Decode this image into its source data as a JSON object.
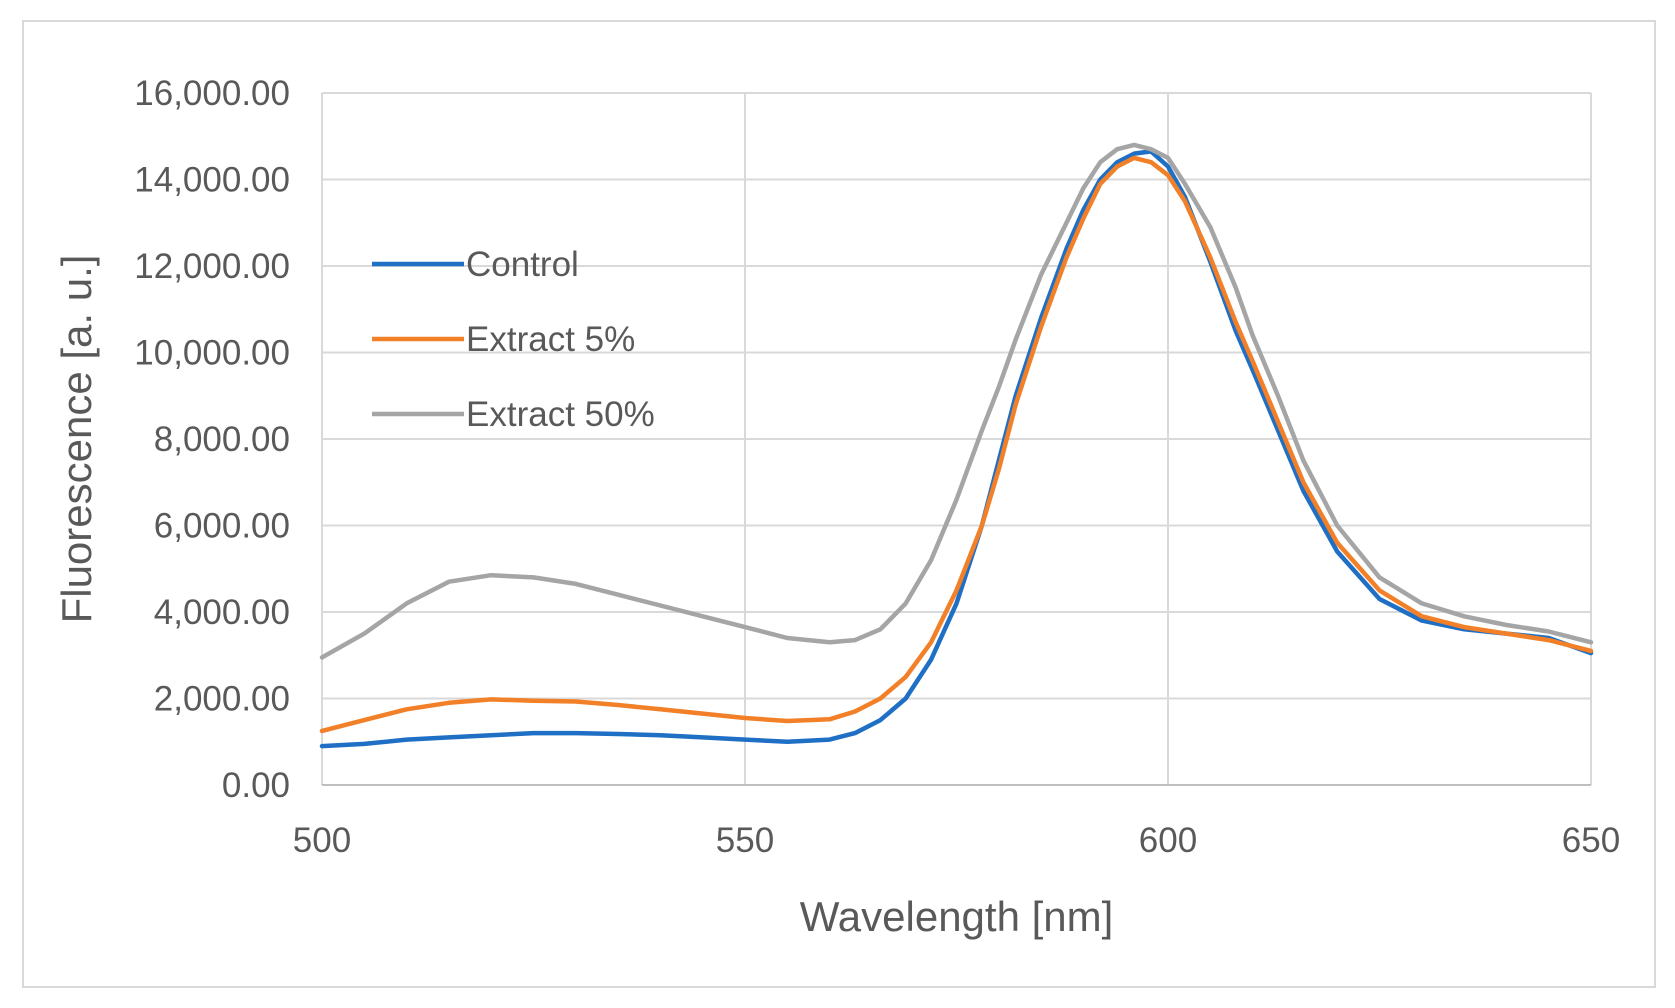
{
  "chart_data": {
    "type": "line",
    "title": "",
    "xlabel": "Wavelength [nm]",
    "ylabel": "Fluorescence [a. u.]",
    "xlim": [
      500,
      650
    ],
    "ylim": [
      0,
      16000
    ],
    "x_ticks": [
      500,
      550,
      600,
      650
    ],
    "x_tick_labels": [
      "500",
      "550",
      "600",
      "650"
    ],
    "y_ticks": [
      0,
      2000,
      4000,
      6000,
      8000,
      10000,
      12000,
      14000,
      16000
    ],
    "y_tick_labels": [
      "0.00",
      "2,000.00",
      "4,000.00",
      "6,000.00",
      "8,000.00",
      "10,000.00",
      "12,000.00",
      "14,000.00",
      "16,000.00"
    ],
    "grid": true,
    "legend_position": "upper-left inside plot",
    "series": [
      {
        "name": "Control",
        "color": "#1f6fc5",
        "x": [
          500,
          505,
          510,
          515,
          520,
          525,
          530,
          535,
          540,
          545,
          550,
          555,
          560,
          563,
          566,
          569,
          572,
          575,
          578,
          580,
          582,
          585,
          588,
          590,
          592,
          594,
          596,
          598,
          600,
          602,
          605,
          608,
          610,
          613,
          616,
          620,
          625,
          630,
          635,
          640,
          645,
          650
        ],
        "values": [
          900,
          950,
          1050,
          1100,
          1150,
          1200,
          1200,
          1180,
          1150,
          1100,
          1050,
          1000,
          1050,
          1200,
          1500,
          2000,
          2900,
          4200,
          6000,
          7500,
          9000,
          10800,
          12400,
          13300,
          14000,
          14400,
          14600,
          14650,
          14300,
          13600,
          12100,
          10500,
          9600,
          8200,
          6800,
          5400,
          4300,
          3800,
          3600,
          3500,
          3400,
          3050
        ]
      },
      {
        "name": "Extract 5%",
        "color": "#f28028",
        "x": [
          500,
          505,
          510,
          515,
          520,
          525,
          530,
          535,
          540,
          545,
          550,
          555,
          560,
          563,
          566,
          569,
          572,
          575,
          578,
          580,
          582,
          585,
          588,
          590,
          592,
          594,
          596,
          598,
          600,
          602,
          605,
          608,
          610,
          613,
          616,
          620,
          625,
          630,
          635,
          640,
          645,
          650
        ],
        "values": [
          1250,
          1500,
          1750,
          1900,
          1980,
          1950,
          1930,
          1850,
          1750,
          1650,
          1550,
          1480,
          1520,
          1700,
          2000,
          2500,
          3300,
          4500,
          6000,
          7300,
          8800,
          10600,
          12200,
          13100,
          13900,
          14300,
          14500,
          14400,
          14100,
          13500,
          12200,
          10700,
          9800,
          8400,
          7000,
          5600,
          4500,
          3900,
          3650,
          3500,
          3350,
          3100
        ]
      },
      {
        "name": "Extract 50%",
        "color": "#a5a5a5",
        "x": [
          500,
          505,
          510,
          515,
          520,
          525,
          530,
          535,
          540,
          545,
          550,
          555,
          560,
          563,
          566,
          569,
          572,
          575,
          578,
          580,
          582,
          585,
          588,
          590,
          592,
          594,
          596,
          598,
          600,
          602,
          605,
          608,
          610,
          613,
          616,
          620,
          625,
          630,
          635,
          640,
          645,
          650
        ],
        "values": [
          2950,
          3500,
          4200,
          4700,
          4850,
          4800,
          4650,
          4400,
          4150,
          3900,
          3650,
          3400,
          3300,
          3350,
          3600,
          4200,
          5200,
          6600,
          8200,
          9200,
          10300,
          11800,
          13000,
          13800,
          14400,
          14700,
          14800,
          14700,
          14500,
          13900,
          12900,
          11500,
          10400,
          9000,
          7500,
          6000,
          4800,
          4200,
          3900,
          3700,
          3550,
          3300
        ]
      }
    ]
  }
}
